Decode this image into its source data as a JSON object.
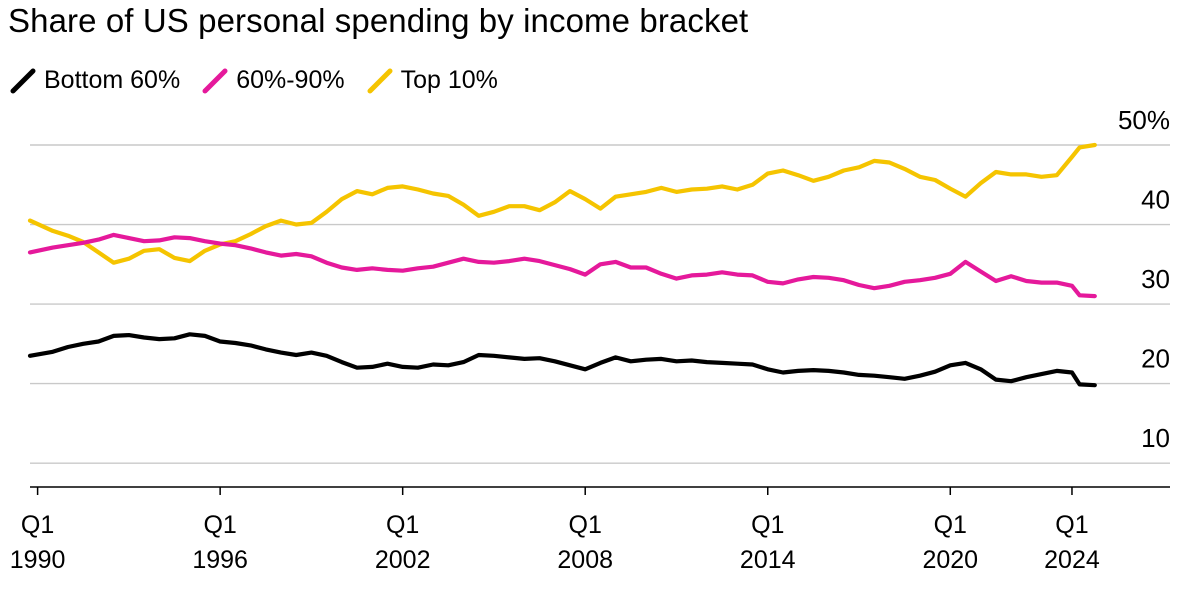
{
  "chart_data": {
    "type": "line",
    "title": "Share of US personal spending by income bracket",
    "xlabel": "",
    "ylabel": "",
    "xlim": [
      1989.75,
      2025.25
    ],
    "ylim": [
      7,
      50
    ],
    "y_ticks": [
      {
        "value": 50,
        "label": "50%"
      },
      {
        "value": 40,
        "label": "40"
      },
      {
        "value": 30,
        "label": "30"
      },
      {
        "value": 20,
        "label": "20"
      },
      {
        "value": 10,
        "label": "10"
      }
    ],
    "x_ticks": [
      {
        "value": 1990,
        "q": "Q1",
        "year": "1990"
      },
      {
        "value": 1996,
        "q": "Q1",
        "year": "1996"
      },
      {
        "value": 2002,
        "q": "Q1",
        "year": "2002"
      },
      {
        "value": 2008,
        "q": "Q1",
        "year": "2008"
      },
      {
        "value": 2014,
        "q": "Q1",
        "year": "2014"
      },
      {
        "value": 2020,
        "q": "Q1",
        "year": "2020"
      },
      {
        "value": 2024,
        "q": "Q1",
        "year": "2024"
      }
    ],
    "grid": true,
    "legend_position": "top-left",
    "series": [
      {
        "name": "Bottom 60%",
        "color": "#000000",
        "points": [
          [
            1989.75,
            23.5
          ],
          [
            1990.5,
            24
          ],
          [
            1991,
            24.6
          ],
          [
            1991.5,
            25
          ],
          [
            1992,
            25.3
          ],
          [
            1992.5,
            26
          ],
          [
            1993,
            26.1
          ],
          [
            1993.5,
            25.8
          ],
          [
            1994,
            25.6
          ],
          [
            1994.5,
            25.7
          ],
          [
            1995,
            26.2
          ],
          [
            1995.5,
            26
          ],
          [
            1996,
            25.3
          ],
          [
            1996.5,
            25.1
          ],
          [
            1997,
            24.8
          ],
          [
            1997.5,
            24.3
          ],
          [
            1998,
            23.9
          ],
          [
            1998.5,
            23.6
          ],
          [
            1999,
            23.9
          ],
          [
            1999.5,
            23.5
          ],
          [
            2000,
            22.7
          ],
          [
            2000.5,
            22
          ],
          [
            2001,
            22.1
          ],
          [
            2001.5,
            22.5
          ],
          [
            2002,
            22.1
          ],
          [
            2002.5,
            22
          ],
          [
            2003,
            22.4
          ],
          [
            2003.5,
            22.3
          ],
          [
            2004,
            22.7
          ],
          [
            2004.5,
            23.6
          ],
          [
            2005,
            23.5
          ],
          [
            2005.5,
            23.3
          ],
          [
            2006,
            23.1
          ],
          [
            2006.5,
            23.2
          ],
          [
            2007,
            22.8
          ],
          [
            2007.5,
            22.3
          ],
          [
            2008,
            21.8
          ],
          [
            2008.5,
            22.6
          ],
          [
            2009,
            23.3
          ],
          [
            2009.5,
            22.8
          ],
          [
            2010,
            23
          ],
          [
            2010.5,
            23.1
          ],
          [
            2011,
            22.8
          ],
          [
            2011.5,
            22.9
          ],
          [
            2012,
            22.7
          ],
          [
            2012.5,
            22.6
          ],
          [
            2013,
            22.5
          ],
          [
            2013.5,
            22.4
          ],
          [
            2014,
            21.8
          ],
          [
            2014.5,
            21.4
          ],
          [
            2015,
            21.6
          ],
          [
            2015.5,
            21.7
          ],
          [
            2016,
            21.6
          ],
          [
            2016.5,
            21.4
          ],
          [
            2017,
            21.1
          ],
          [
            2017.5,
            21
          ],
          [
            2018,
            20.8
          ],
          [
            2018.5,
            20.6
          ],
          [
            2019,
            21
          ],
          [
            2019.5,
            21.5
          ],
          [
            2020,
            22.3
          ],
          [
            2020.5,
            22.6
          ],
          [
            2021,
            21.8
          ],
          [
            2021.5,
            20.5
          ],
          [
            2022,
            20.3
          ],
          [
            2022.5,
            20.8
          ],
          [
            2023,
            21.2
          ],
          [
            2023.5,
            21.6
          ],
          [
            2024,
            21.4
          ],
          [
            2024.25,
            19.9
          ],
          [
            2024.75,
            19.8
          ]
        ]
      },
      {
        "name": "60%-90%",
        "color": "#e5199b",
        "points": [
          [
            1989.75,
            36.5
          ],
          [
            1990.5,
            37.1
          ],
          [
            1991,
            37.4
          ],
          [
            1991.5,
            37.7
          ],
          [
            1992,
            38.1
          ],
          [
            1992.5,
            38.7
          ],
          [
            1993,
            38.3
          ],
          [
            1993.5,
            37.9
          ],
          [
            1994,
            38
          ],
          [
            1994.5,
            38.4
          ],
          [
            1995,
            38.3
          ],
          [
            1995.5,
            37.9
          ],
          [
            1996,
            37.6
          ],
          [
            1996.5,
            37.4
          ],
          [
            1997,
            37
          ],
          [
            1997.5,
            36.5
          ],
          [
            1998,
            36.1
          ],
          [
            1998.5,
            36.3
          ],
          [
            1999,
            36
          ],
          [
            1999.5,
            35.2
          ],
          [
            2000,
            34.6
          ],
          [
            2000.5,
            34.3
          ],
          [
            2001,
            34.5
          ],
          [
            2001.5,
            34.3
          ],
          [
            2002,
            34.2
          ],
          [
            2002.5,
            34.5
          ],
          [
            2003,
            34.7
          ],
          [
            2003.5,
            35.2
          ],
          [
            2004,
            35.7
          ],
          [
            2004.5,
            35.3
          ],
          [
            2005,
            35.2
          ],
          [
            2005.5,
            35.4
          ],
          [
            2006,
            35.7
          ],
          [
            2006.5,
            35.4
          ],
          [
            2007,
            34.9
          ],
          [
            2007.5,
            34.4
          ],
          [
            2008,
            33.7
          ],
          [
            2008.5,
            35
          ],
          [
            2009,
            35.3
          ],
          [
            2009.5,
            34.6
          ],
          [
            2010,
            34.6
          ],
          [
            2010.5,
            33.8
          ],
          [
            2011,
            33.2
          ],
          [
            2011.5,
            33.6
          ],
          [
            2012,
            33.7
          ],
          [
            2012.5,
            34
          ],
          [
            2013,
            33.7
          ],
          [
            2013.5,
            33.6
          ],
          [
            2014,
            32.8
          ],
          [
            2014.5,
            32.6
          ],
          [
            2015,
            33.1
          ],
          [
            2015.5,
            33.4
          ],
          [
            2016,
            33.3
          ],
          [
            2016.5,
            33
          ],
          [
            2017,
            32.4
          ],
          [
            2017.5,
            32
          ],
          [
            2018,
            32.3
          ],
          [
            2018.5,
            32.8
          ],
          [
            2019,
            33
          ],
          [
            2019.5,
            33.3
          ],
          [
            2020,
            33.8
          ],
          [
            2020.5,
            35.3
          ],
          [
            2021,
            34.1
          ],
          [
            2021.5,
            32.9
          ],
          [
            2022,
            33.5
          ],
          [
            2022.5,
            32.9
          ],
          [
            2023,
            32.7
          ],
          [
            2023.5,
            32.7
          ],
          [
            2024,
            32.3
          ],
          [
            2024.25,
            31.1
          ],
          [
            2024.75,
            31
          ]
        ]
      },
      {
        "name": "Top 10%",
        "color": "#f5c400",
        "points": [
          [
            1989.75,
            40.5
          ],
          [
            1990.5,
            39.2
          ],
          [
            1991,
            38.6
          ],
          [
            1991.5,
            37.8
          ],
          [
            1992,
            36.5
          ],
          [
            1992.5,
            35.2
          ],
          [
            1993,
            35.7
          ],
          [
            1993.5,
            36.7
          ],
          [
            1994,
            36.9
          ],
          [
            1994.5,
            35.8
          ],
          [
            1995,
            35.4
          ],
          [
            1995.5,
            36.7
          ],
          [
            1996,
            37.5
          ],
          [
            1996.5,
            37.9
          ],
          [
            1997,
            38.8
          ],
          [
            1997.5,
            39.8
          ],
          [
            1998,
            40.5
          ],
          [
            1998.5,
            40
          ],
          [
            1999,
            40.2
          ],
          [
            1999.5,
            41.6
          ],
          [
            2000,
            43.2
          ],
          [
            2000.5,
            44.2
          ],
          [
            2001,
            43.8
          ],
          [
            2001.5,
            44.6
          ],
          [
            2002,
            44.8
          ],
          [
            2002.5,
            44.4
          ],
          [
            2003,
            43.9
          ],
          [
            2003.5,
            43.6
          ],
          [
            2004,
            42.5
          ],
          [
            2004.5,
            41.1
          ],
          [
            2005,
            41.6
          ],
          [
            2005.5,
            42.3
          ],
          [
            2006,
            42.3
          ],
          [
            2006.5,
            41.8
          ],
          [
            2007,
            42.8
          ],
          [
            2007.5,
            44.2
          ],
          [
            2008,
            43.2
          ],
          [
            2008.5,
            42
          ],
          [
            2009,
            43.5
          ],
          [
            2009.5,
            43.8
          ],
          [
            2010,
            44.1
          ],
          [
            2010.5,
            44.6
          ],
          [
            2011,
            44.1
          ],
          [
            2011.5,
            44.4
          ],
          [
            2012,
            44.5
          ],
          [
            2012.5,
            44.8
          ],
          [
            2013,
            44.4
          ],
          [
            2013.5,
            45
          ],
          [
            2014,
            46.4
          ],
          [
            2014.5,
            46.8
          ],
          [
            2015,
            46.2
          ],
          [
            2015.5,
            45.5
          ],
          [
            2016,
            46
          ],
          [
            2016.5,
            46.8
          ],
          [
            2017,
            47.2
          ],
          [
            2017.5,
            48
          ],
          [
            2018,
            47.8
          ],
          [
            2018.5,
            47
          ],
          [
            2019,
            46
          ],
          [
            2019.5,
            45.6
          ],
          [
            2020,
            44.5
          ],
          [
            2020.5,
            43.5
          ],
          [
            2021,
            45.2
          ],
          [
            2021.5,
            46.6
          ],
          [
            2022,
            46.3
          ],
          [
            2022.5,
            46.3
          ],
          [
            2023,
            46
          ],
          [
            2023.5,
            46.2
          ],
          [
            2024,
            48.5
          ],
          [
            2024.25,
            49.7
          ],
          [
            2024.75,
            50
          ]
        ]
      }
    ]
  }
}
